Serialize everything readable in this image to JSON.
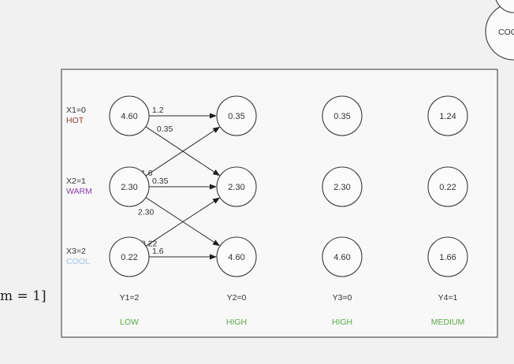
{
  "cropped_text": {
    "left": "m = 1]",
    "top_right_node": "COO"
  },
  "x_variables": [
    {
      "label": "X1=0",
      "state": "HOT",
      "color": "#a0392d"
    },
    {
      "label": "X2=1",
      "state": "WARM",
      "color": "#8a3fb0"
    },
    {
      "label": "X3=2",
      "state": "COOL",
      "color": "#9ec4e4"
    }
  ],
  "columns": [
    {
      "values": [
        "4.60",
        "2.30",
        "0.22"
      ],
      "label": "Y1=2",
      "state": "LOW"
    },
    {
      "values": [
        "0.35",
        "2.30",
        "4.60"
      ],
      "label": "Y2=0",
      "state": "HIGH"
    },
    {
      "values": [
        "0.35",
        "2.30",
        "4.60"
      ],
      "label": "Y3=0",
      "state": "HIGH"
    },
    {
      "values": [
        "1.24",
        "0.22",
        "1.66"
      ],
      "label": "Y4=1",
      "state": "MEDIUM"
    }
  ],
  "state_label_color": "#5aa846",
  "edges": [
    {
      "from": 0,
      "to": 0,
      "weight": "1.2"
    },
    {
      "from": 0,
      "to": 1,
      "weight": "0.35"
    },
    {
      "from": 1,
      "to": 0,
      "weight": "1.6"
    },
    {
      "from": 1,
      "to": 1,
      "weight": "0.35"
    },
    {
      "from": 1,
      "to": 2,
      "weight": "2.30"
    },
    {
      "from": 2,
      "to": 1,
      "weight": "0.22"
    },
    {
      "from": 2,
      "to": 2,
      "weight": "1.6"
    }
  ]
}
